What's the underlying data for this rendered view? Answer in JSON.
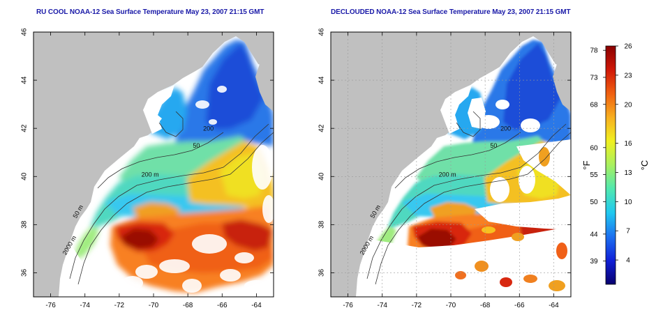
{
  "titles": {
    "left": "RU COOL NOAA-12 Sea Surface Temperature May 23, 2007 21:15 GMT",
    "right": "DECLOUDED NOAA-12 Sea Surface Temperature May 23, 2007 21:15 GMT"
  },
  "map": {
    "lon_range": [
      -77,
      -63
    ],
    "lat_range": [
      35,
      46
    ],
    "lon_ticks": [
      -76,
      -74,
      -72,
      -70,
      -68,
      -66,
      -64
    ],
    "lat_ticks": [
      36,
      38,
      40,
      42,
      44,
      46
    ],
    "lon_tick_labels": [
      "-76",
      "-74",
      "-72",
      "-70",
      "-68",
      "-66",
      "-64"
    ],
    "lat_tick_labels": [
      "36",
      "38",
      "40",
      "42",
      "44",
      "46"
    ],
    "contour_labels": [
      {
        "text": "200 m",
        "lon": -70.2,
        "lat": 40.0
      },
      {
        "text": "50 m",
        "lon": -74.3,
        "lat": 38.5
      },
      {
        "text": "2000 m",
        "lon": -74.8,
        "lat": 37.1
      },
      {
        "text": "200",
        "lon": -66.8,
        "lat": 41.9
      },
      {
        "text": "50",
        "lon": -67.5,
        "lat": 41.2
      }
    ],
    "land_color": "#c0c0c0",
    "cloud_color": "#ffffff"
  },
  "colorbar": {
    "f_ticks": [
      39,
      44,
      50,
      55,
      60,
      68,
      73,
      78
    ],
    "f_tick_labels": [
      "39",
      "44",
      "50",
      "55",
      "60",
      "68",
      "73",
      "78"
    ],
    "c_ticks": [
      4,
      7,
      10,
      13,
      16,
      20,
      23,
      26
    ],
    "c_tick_labels": [
      "4",
      "7",
      "10",
      "13",
      "16",
      "20",
      "23",
      "26"
    ],
    "c_range": [
      1.5,
      26
    ],
    "f_label": "°F",
    "c_label": "°C",
    "colors": [
      "#08006e",
      "#1020d8",
      "#1c70f0",
      "#20c8f0",
      "#50e8b0",
      "#a8f060",
      "#f0f020",
      "#f8b020",
      "#f06010",
      "#d01808",
      "#8a0000"
    ]
  }
}
